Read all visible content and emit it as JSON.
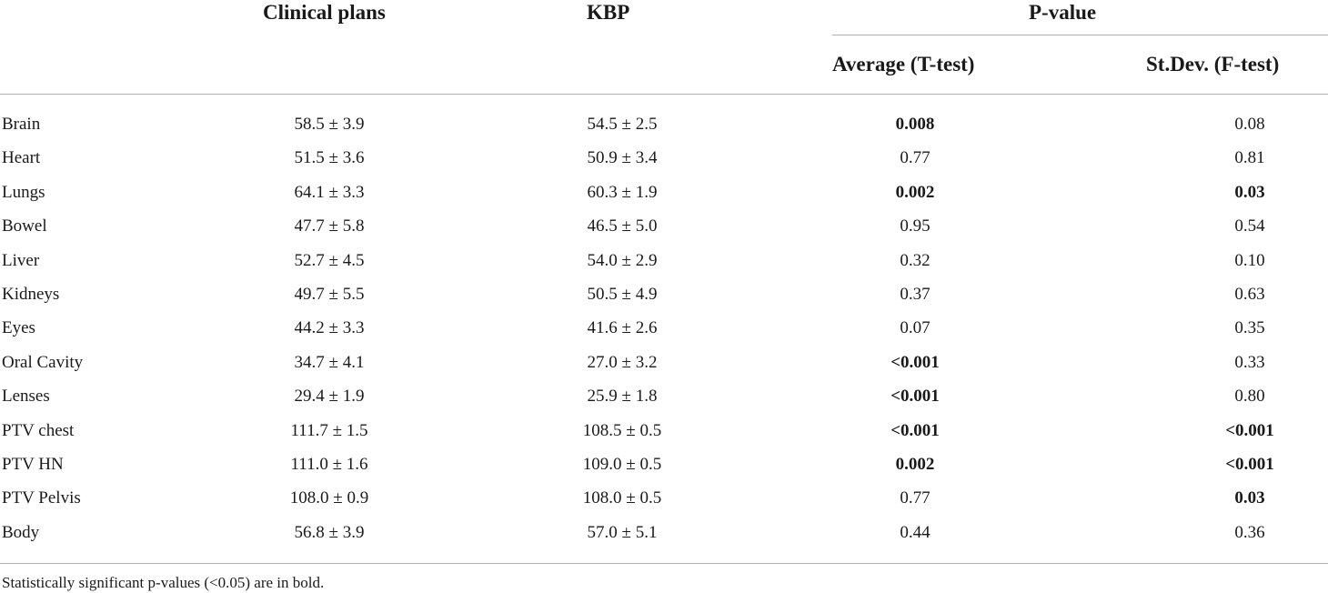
{
  "header": {
    "clinical_plans": "Clinical plans",
    "kbp": "KBP",
    "p_value": "P-value",
    "average": "Average (T-test)",
    "stdev": "St.Dev. (F-test)"
  },
  "rows": [
    {
      "name": "Brain",
      "clinical": "58.5 ± 3.9",
      "kbp": "54.5 ± 2.5",
      "avg": "0.008",
      "avg_bold": true,
      "std": "0.08",
      "std_bold": false
    },
    {
      "name": "Heart",
      "clinical": "51.5 ± 3.6",
      "kbp": "50.9 ± 3.4",
      "avg": "0.77",
      "avg_bold": false,
      "std": "0.81",
      "std_bold": false
    },
    {
      "name": "Lungs",
      "clinical": "64.1 ± 3.3",
      "kbp": "60.3 ± 1.9",
      "avg": "0.002",
      "avg_bold": true,
      "std": "0.03",
      "std_bold": true
    },
    {
      "name": "Bowel",
      "clinical": "47.7 ± 5.8",
      "kbp": "46.5 ± 5.0",
      "avg": "0.95",
      "avg_bold": false,
      "std": "0.54",
      "std_bold": false
    },
    {
      "name": "Liver",
      "clinical": "52.7 ± 4.5",
      "kbp": "54.0 ± 2.9",
      "avg": "0.32",
      "avg_bold": false,
      "std": "0.10",
      "std_bold": false
    },
    {
      "name": "Kidneys",
      "clinical": "49.7 ± 5.5",
      "kbp": "50.5 ± 4.9",
      "avg": "0.37",
      "avg_bold": false,
      "std": "0.63",
      "std_bold": false
    },
    {
      "name": "Eyes",
      "clinical": "44.2 ± 3.3",
      "kbp": "41.6 ± 2.6",
      "avg": "0.07",
      "avg_bold": false,
      "std": "0.35",
      "std_bold": false
    },
    {
      "name": "Oral Cavity",
      "clinical": "34.7 ± 4.1",
      "kbp": "27.0 ± 3.2",
      "avg": "<0.001",
      "avg_bold": true,
      "std": "0.33",
      "std_bold": false
    },
    {
      "name": "Lenses",
      "clinical": "29.4 ± 1.9",
      "kbp": "25.9 ± 1.8",
      "avg": "<0.001",
      "avg_bold": true,
      "std": "0.80",
      "std_bold": false
    },
    {
      "name": "PTV chest",
      "clinical": "111.7 ± 1.5",
      "kbp": "108.5 ± 0.5",
      "avg": "<0.001",
      "avg_bold": true,
      "std": "<0.001",
      "std_bold": true
    },
    {
      "name": "PTV HN",
      "clinical": "111.0 ± 1.6",
      "kbp": "109.0 ± 0.5",
      "avg": "0.002",
      "avg_bold": true,
      "std": "<0.001",
      "std_bold": true
    },
    {
      "name": "PTV Pelvis",
      "clinical": "108.0 ± 0.9",
      "kbp": "108.0 ± 0.5",
      "avg": "0.77",
      "avg_bold": false,
      "std": "0.03",
      "std_bold": true
    },
    {
      "name": "Body",
      "clinical": "56.8 ± 3.9",
      "kbp": "57.0 ± 5.1",
      "avg": "0.44",
      "avg_bold": false,
      "std": "0.36",
      "std_bold": false
    }
  ],
  "footnote": "Statistically significant p-values (<0.05) are in bold."
}
